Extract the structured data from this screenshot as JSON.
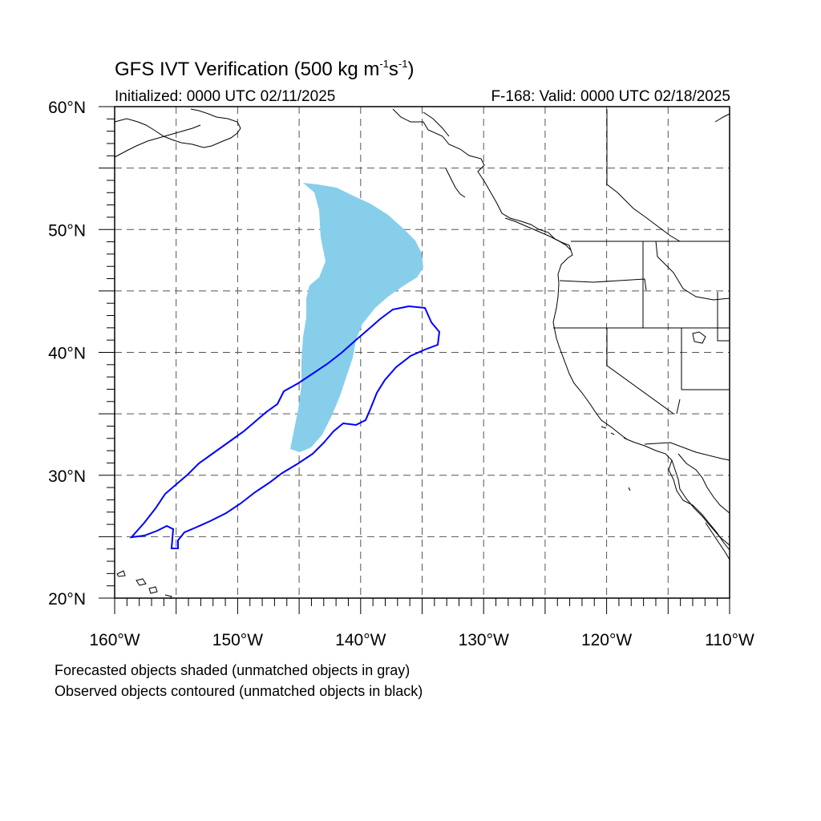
{
  "header": {
    "title_main": "GFS IVT Verification (500 kg m",
    "title_exp1": "-1",
    "title_mid": "s",
    "title_exp2": "-1",
    "title_end": ")",
    "initialized": "Initialized: 0000 UTC 02/11/2025",
    "valid": "F-168: Valid: 0000 UTC 02/18/2025"
  },
  "map": {
    "lon_range": [
      -160,
      -110
    ],
    "lat_range": [
      20,
      60
    ],
    "lon_ticks": [
      "160°W",
      "150°W",
      "140°W",
      "130°W",
      "120°W",
      "110°W"
    ],
    "lat_ticks": [
      "20°N",
      "30°N",
      "40°N",
      "50°N",
      "60°N"
    ],
    "grid": "dashed, every 5°",
    "forecast_object_color": "#87CEEB",
    "observed_object_color": "#0000FF",
    "coastline_color": "#000000"
  },
  "captions": {
    "line1": "Forecasted objects shaded (unmatched objects in gray)",
    "line2": "Observed objects contoured (unmatched objects in black)"
  }
}
